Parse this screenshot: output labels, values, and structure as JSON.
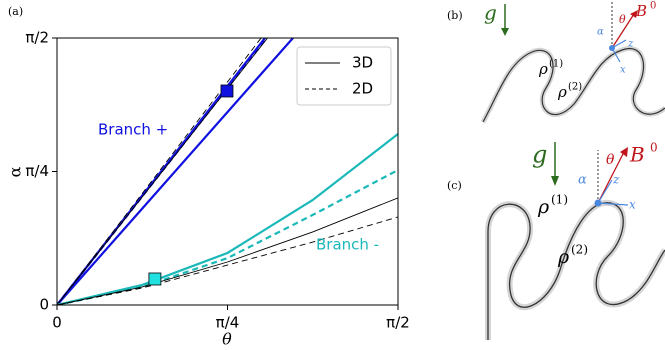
{
  "chart_data": {
    "type": "line",
    "panel_label": "(a)",
    "xlabel": "θ",
    "ylabel": "α",
    "xlim": [
      0,
      1.5708
    ],
    "ylim": [
      0,
      1.5708
    ],
    "xticks": [
      {
        "value": 0,
        "label": "0"
      },
      {
        "value": 0.7854,
        "label": "π/4"
      },
      {
        "value": 1.5708,
        "label": "π/2"
      }
    ],
    "yticks": [
      {
        "value": 0,
        "label": "0"
      },
      {
        "value": 0.7854,
        "label": "π/4"
      },
      {
        "value": 1.5708,
        "label": "π/2"
      }
    ],
    "legend_position": "upper right",
    "legend": [
      {
        "label": "3D",
        "dashed": false
      },
      {
        "label": "2D",
        "dashed": true
      }
    ],
    "series": [
      {
        "color": "#1010e0",
        "dashed": false,
        "width": 2.2,
        "x": [
          0,
          0.958
        ],
        "values": [
          0,
          1.5708
        ]
      },
      {
        "color": "#1010e0",
        "dashed": false,
        "width": 2.2,
        "x": [
          0,
          1.087
        ],
        "values": [
          0,
          1.5708
        ]
      },
      {
        "color": "#1010e0",
        "dashed": true,
        "width": 2.2,
        "x": [
          0,
          0.965
        ],
        "values": [
          0,
          1.5708
        ]
      },
      {
        "color": "#000000",
        "dashed": false,
        "width": 0.9,
        "x": [
          0,
          0.97
        ],
        "values": [
          0,
          1.5708
        ]
      },
      {
        "color": "#000000",
        "dashed": true,
        "width": 0.9,
        "x": [
          0,
          0.94
        ],
        "values": [
          0,
          1.5708
        ]
      },
      {
        "color": "#1ab8b8",
        "dashed": false,
        "width": 2.2,
        "x": [
          0,
          0.3927,
          0.7854,
          1.1781,
          1.5708
        ],
        "values": [
          0,
          0.118,
          0.306,
          0.618,
          1.006
        ]
      },
      {
        "color": "#1ab8b8",
        "dashed": true,
        "width": 2.2,
        "x": [
          0,
          0.3927,
          0.7854,
          1.1781,
          1.5708
        ],
        "values": [
          0,
          0.106,
          0.276,
          0.53,
          0.794
        ]
      },
      {
        "color": "#000000",
        "dashed": false,
        "width": 0.9,
        "x": [
          0,
          0.3927,
          0.7854,
          1.1781,
          1.5708
        ],
        "values": [
          0,
          0.106,
          0.253,
          0.43,
          0.63
        ]
      },
      {
        "color": "#000000",
        "dashed": true,
        "width": 0.9,
        "x": [
          0,
          0.3927,
          0.7854,
          1.1781,
          1.5708
        ],
        "values": [
          0,
          0.1,
          0.235,
          0.37,
          0.518
        ]
      }
    ],
    "markers": [
      {
        "x": 0.783,
        "y": 1.259,
        "color": "#1010e0"
      },
      {
        "x": 0.451,
        "y": 0.153,
        "color": "#20e0e0"
      }
    ],
    "annotations": [
      {
        "text": "Branch +",
        "color": "#1010e0"
      },
      {
        "text": "Branch -",
        "color": "#1ab8b8"
      }
    ]
  },
  "panels": [
    {
      "label": "(b)",
      "g": "g",
      "B": "B",
      "B_sup": "0",
      "theta": "θ",
      "alpha": "α",
      "z": "z",
      "x": "x",
      "rho": "ρ",
      "rho1": "(1)",
      "rho2": "(2)"
    },
    {
      "label": "(c)",
      "g": "g",
      "B": "B",
      "B_sup": "0",
      "theta": "θ",
      "alpha": "α",
      "z": "z",
      "x": "x",
      "rho": "ρ",
      "rho1": "(1)",
      "rho2": "(2)"
    }
  ]
}
